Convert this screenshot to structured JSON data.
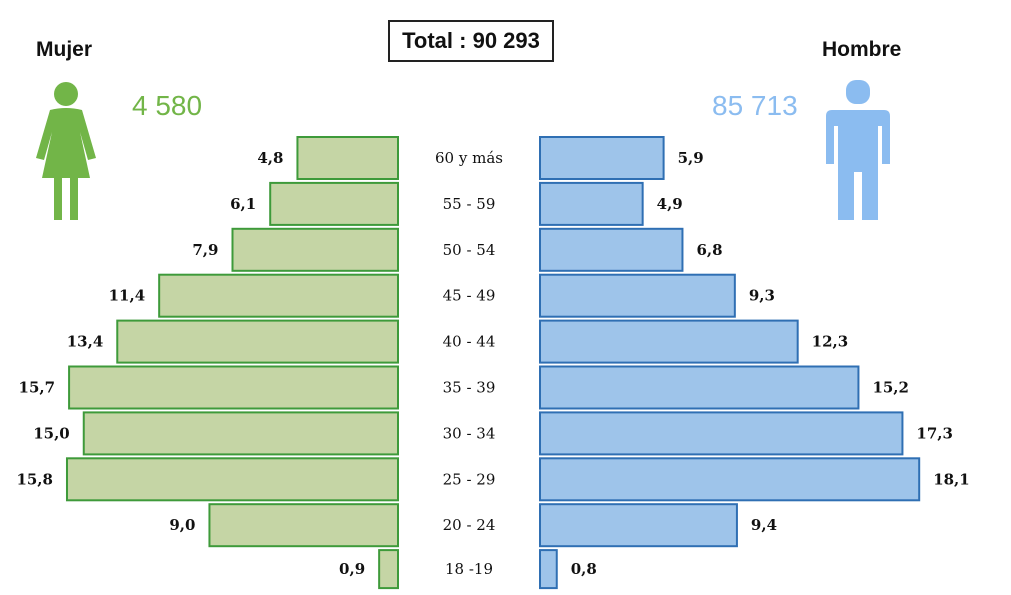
{
  "total_label": "Total : 90 293",
  "female": {
    "label": "Mujer",
    "count": "4 580",
    "icon": "female-person-icon"
  },
  "male": {
    "label": "Hombre",
    "count": "85 713",
    "icon": "male-person-icon"
  },
  "colors": {
    "female_fill": "#c5d5a5",
    "female_stroke": "#3e9a3a",
    "female_accent": "#72b548",
    "male_fill": "#9ec4ea",
    "male_stroke": "#2f6fb3",
    "male_accent": "#8bbcf0"
  },
  "chart_data": {
    "type": "bar",
    "subtype": "population-pyramid",
    "categories": [
      "60 y más",
      "55 - 59",
      "50 - 54",
      "45 - 49",
      "40 - 44",
      "35 - 39",
      "30 - 34",
      "25 - 29",
      "20 - 24",
      "18 -19"
    ],
    "series": [
      {
        "name": "Mujer",
        "values": [
          4.8,
          6.1,
          7.9,
          11.4,
          13.4,
          15.7,
          15.0,
          15.8,
          9.0,
          0.9
        ],
        "labels": [
          "4,8",
          "6,1",
          "7,9",
          "11,4",
          "13,4",
          "15,7",
          "15,0",
          "15,8",
          "9,0",
          "0,9"
        ]
      },
      {
        "name": "Hombre",
        "values": [
          5.9,
          4.9,
          6.8,
          9.3,
          12.3,
          15.2,
          17.3,
          18.1,
          9.4,
          0.8
        ],
        "labels": [
          "5,9",
          "4,9",
          "6,8",
          "9,3",
          "12,3",
          "15,2",
          "17,3",
          "18,1",
          "9,4",
          "0,8"
        ]
      }
    ]
  }
}
